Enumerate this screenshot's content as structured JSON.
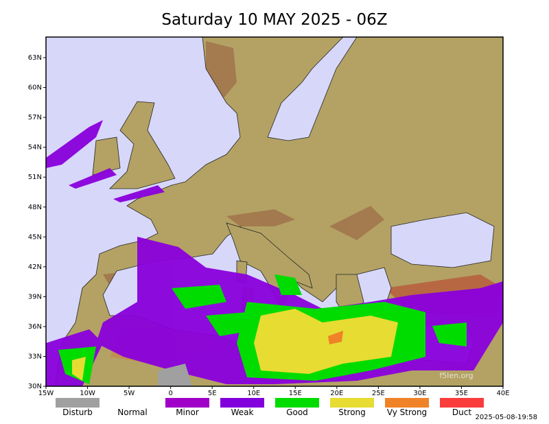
{
  "title": "Saturday 10 MAY 2025 - 06Z",
  "lat_labels": [
    "63N",
    "60N",
    "57N",
    "54N",
    "51N",
    "48N",
    "45N",
    "42N",
    "39N",
    "36N",
    "33N",
    "30N"
  ],
  "lon_labels": [
    "15W",
    "10W",
    "5W",
    "0",
    "5E",
    "10E",
    "15E",
    "20E",
    "25E",
    "30E",
    "35E",
    "40E"
  ],
  "legend": [
    {
      "label": "Disturb",
      "color": "#a0a0a0"
    },
    {
      "label": "Normal",
      "color": "#ffffff"
    },
    {
      "label": "Minor",
      "color": "#a000c8"
    },
    {
      "label": "Weak",
      "color": "#8200dc"
    },
    {
      "label": "Good",
      "color": "#00dc00"
    },
    {
      "label": "Strong",
      "color": "#e6dc32"
    },
    {
      "label": "Vy Strong",
      "color": "#f08228"
    },
    {
      "label": "Duct",
      "color": "#fa3c3c"
    }
  ],
  "watermark": "f5len.org",
  "timestamp": "2025-05-08-19:58"
}
